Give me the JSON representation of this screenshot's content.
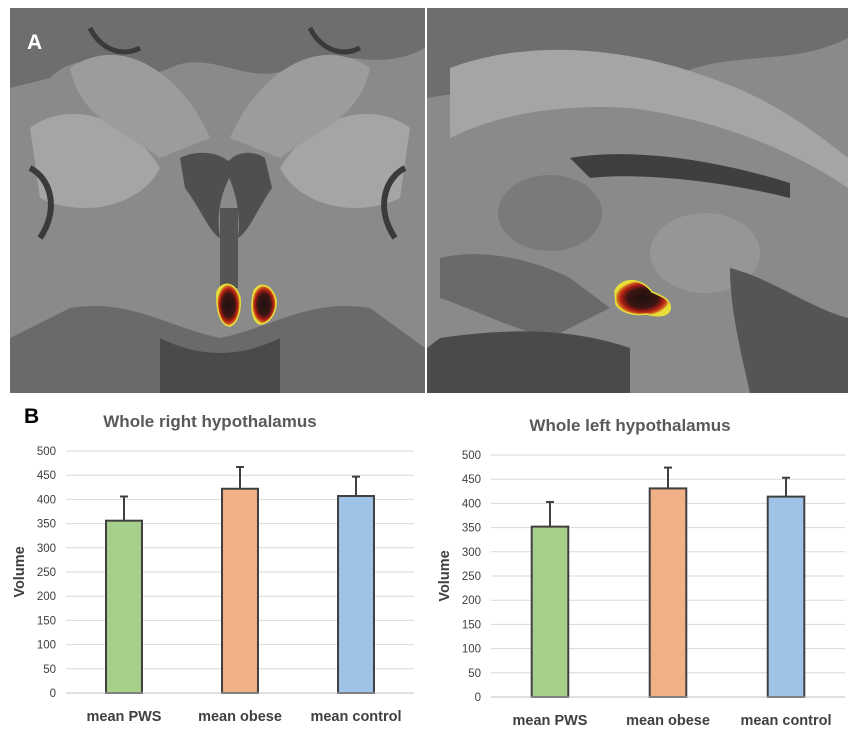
{
  "panel_a": {
    "letter": "A"
  },
  "panel_b": {
    "letter": "B"
  },
  "colors": {
    "pws": "#a6d08a",
    "obese": "#f2b087",
    "control": "#9fc3e6",
    "bar_stroke": "#404040",
    "grid": "#d9d9d9",
    "roi_outer": "#e6df3a",
    "roi_mid": "#b01e14",
    "roi_core": "#241010"
  },
  "chart_data": [
    {
      "type": "bar",
      "title": "Whole right hypothalamus",
      "ylabel": "Volume",
      "xlabel": "",
      "categories": [
        "mean PWS",
        "mean obese",
        "mean control"
      ],
      "values": [
        356,
        422,
        407
      ],
      "error_plus": [
        50,
        45,
        40
      ],
      "ylim": [
        0,
        500
      ],
      "yticks": [
        "0",
        "50",
        "100",
        "150",
        "200",
        "250",
        "300",
        "350",
        "400",
        "450",
        "500"
      ],
      "grid": true,
      "legend": "none"
    },
    {
      "type": "bar",
      "title": "Whole left hypothalamus",
      "ylabel": "Volume",
      "xlabel": "",
      "categories": [
        "mean PWS",
        "mean obese",
        "mean control"
      ],
      "values": [
        352,
        431,
        414
      ],
      "error_plus": [
        51,
        43,
        39
      ],
      "ylim": [
        0,
        500
      ],
      "yticks": [
        "0",
        "50",
        "100",
        "150",
        "200",
        "250",
        "300",
        "350",
        "400",
        "450",
        "500"
      ],
      "grid": true,
      "legend": "none"
    }
  ]
}
